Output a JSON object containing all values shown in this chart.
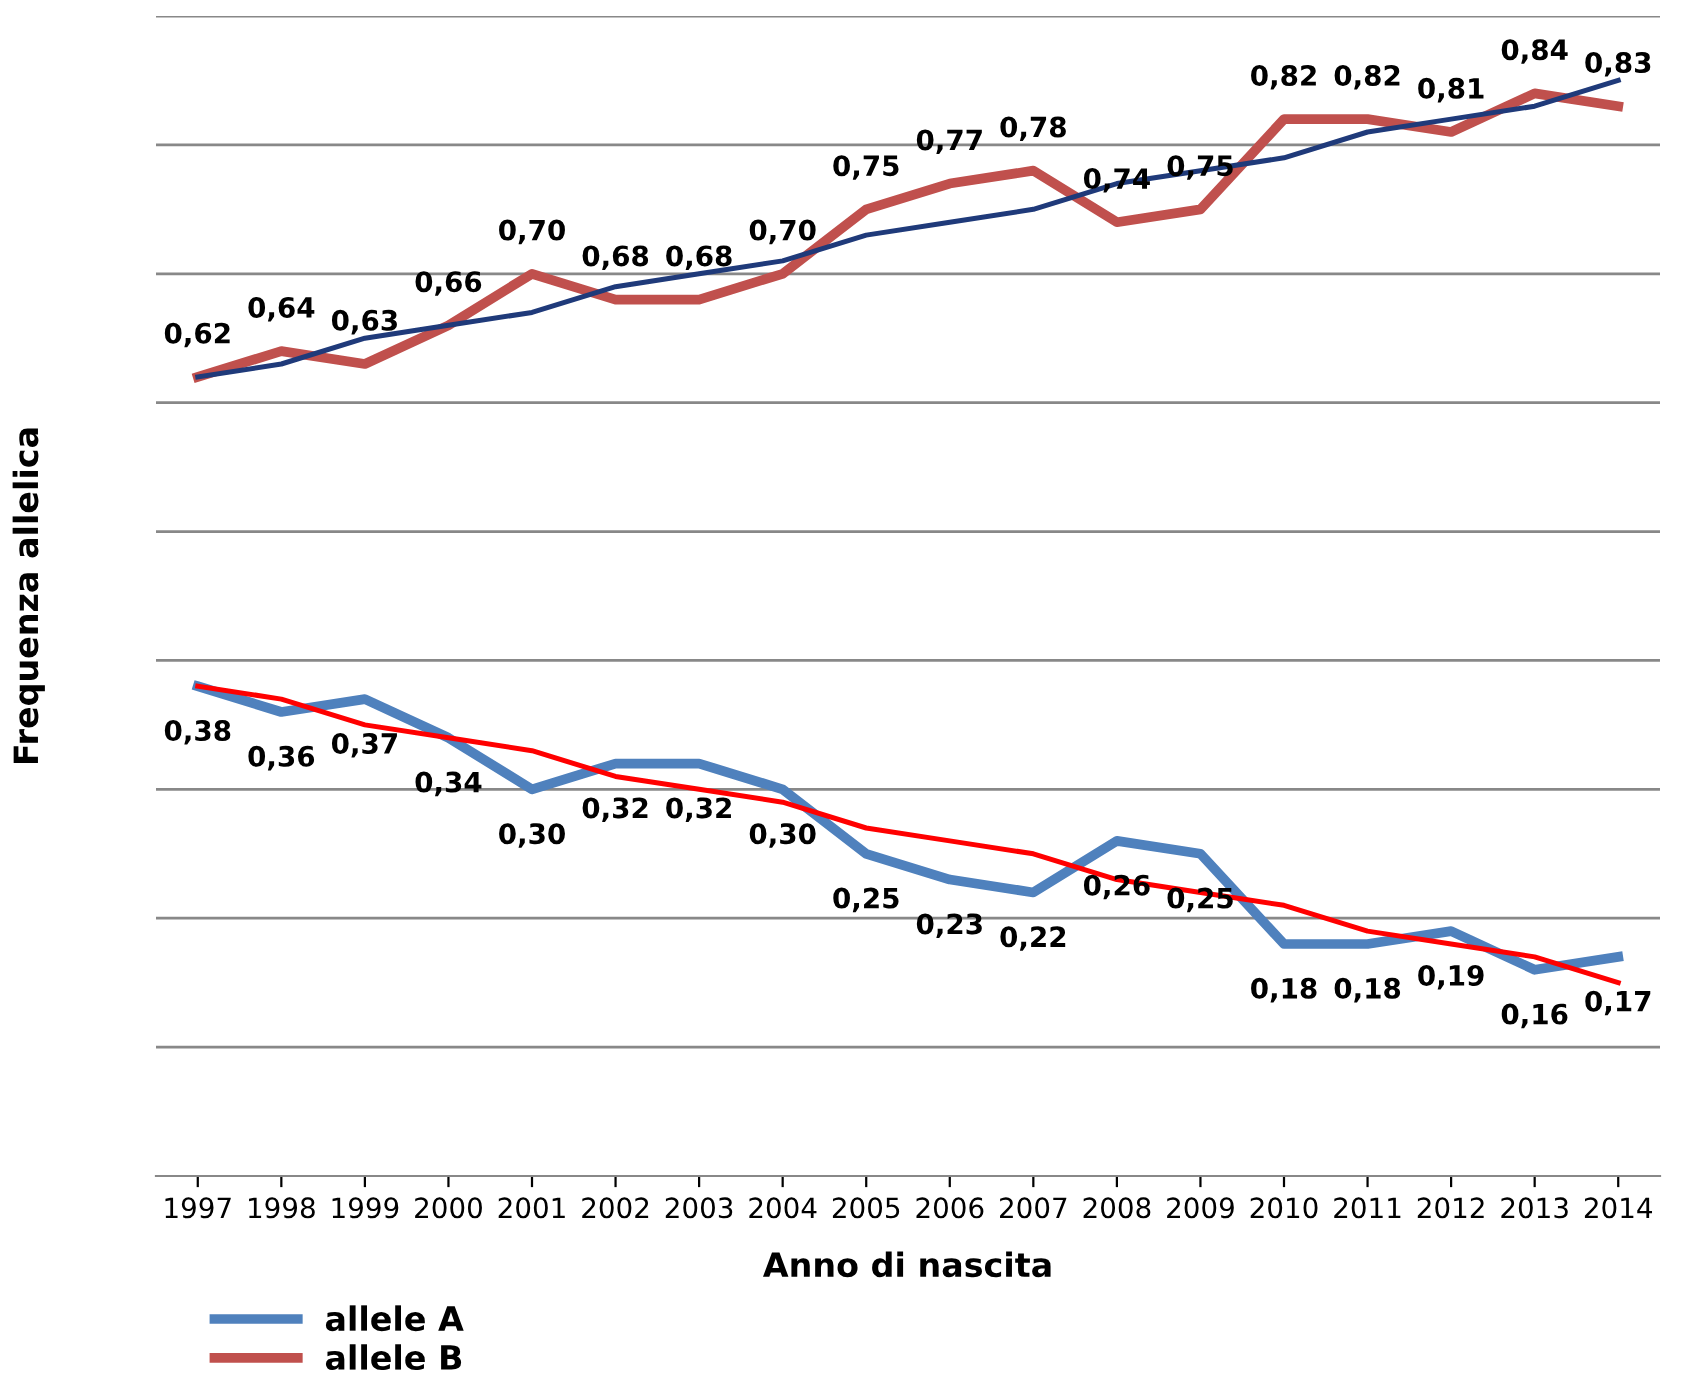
{
  "chart_data": {
    "type": "line",
    "xlabel": "Anno di nascita",
    "ylabel": "Frequenza allelica",
    "categories": [
      "1997",
      "1998",
      "1999",
      "2000",
      "2001",
      "2002",
      "2003",
      "2004",
      "2005",
      "2006",
      "2007",
      "2008",
      "2009",
      "2010",
      "2011",
      "2012",
      "2013",
      "2014"
    ],
    "series": [
      {
        "name": "allele A",
        "color": "#4f81bd",
        "values": [
          0.38,
          0.36,
          0.37,
          0.34,
          0.3,
          0.32,
          0.32,
          0.3,
          0.25,
          0.23,
          0.22,
          0.26,
          0.25,
          0.18,
          0.18,
          0.19,
          0.16,
          0.17
        ],
        "value_labels": [
          "0,38",
          "0,36",
          "0,37",
          "0,34",
          "0,30",
          "0,32",
          "0,32",
          "0,30",
          "0,25",
          "0,23",
          "0,22",
          "0,26",
          "0,25",
          "0,18",
          "0,18",
          "0,19",
          "0,16",
          "0,17"
        ]
      },
      {
        "name": "allele B",
        "color": "#c0504d",
        "values": [
          0.62,
          0.64,
          0.63,
          0.66,
          0.7,
          0.68,
          0.68,
          0.7,
          0.75,
          0.77,
          0.78,
          0.74,
          0.75,
          0.82,
          0.82,
          0.81,
          0.84,
          0.83
        ],
        "value_labels": [
          "0,62",
          "0,64",
          "0,63",
          "0,66",
          "0,70",
          "0,68",
          "0,68",
          "0,70",
          "0,75",
          "0,77",
          "0,78",
          "0,74",
          "0,75",
          "0,82",
          "0,82",
          "0,81",
          "0,84",
          "0,83"
        ]
      },
      {
        "type": "line",
        "color": "#1f3a7a",
        "values": [
          0.62,
          0.63,
          0.65,
          0.66,
          0.67,
          0.69,
          0.7,
          0.71,
          0.73,
          0.74,
          0.75,
          0.77,
          0.78,
          0.79,
          0.81,
          0.82,
          0.83,
          0.85
        ]
      },
      {
        "type": "line",
        "color": "#ff0000",
        "values": [
          0.38,
          0.37,
          0.35,
          0.34,
          0.33,
          0.31,
          0.3,
          0.29,
          0.27,
          0.26,
          0.25,
          0.23,
          0.22,
          0.21,
          0.19,
          0.18,
          0.17,
          0.15
        ]
      }
    ],
    "ylim": [
      0,
      0.9
    ],
    "yticks": [
      {
        "value": 0.1,
        "label": null
      },
      {
        "value": 0.2,
        "label": null
      },
      {
        "value": 0.3,
        "label": null
      },
      {
        "value": 0.4,
        "label": null
      },
      {
        "value": 0.5,
        "label": null
      },
      {
        "value": 0.6,
        "label": null
      },
      {
        "value": 0.7,
        "label": null
      },
      {
        "value": 0.8,
        "label": null
      },
      {
        "value": 0.9,
        "label": null
      }
    ],
    "grid": "y",
    "legend": "bottom left",
    "tick_labels": "x"
  }
}
